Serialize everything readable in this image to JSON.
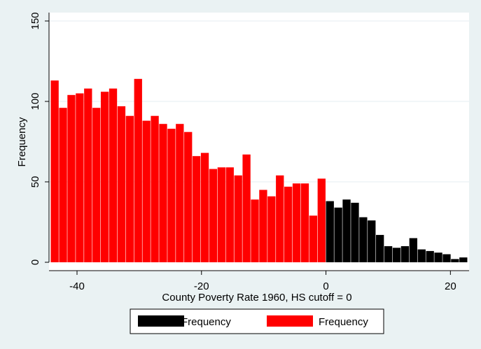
{
  "chart_data": {
    "type": "bar",
    "title": "",
    "xlabel": "County Poverty Rate 1960, HS cutoff = 0",
    "ylabel": "Frequency",
    "xlim": [
      -44.5,
      23
    ],
    "ylim": [
      0,
      150
    ],
    "x_ticks": [
      -40,
      -20,
      0,
      20
    ],
    "y_ticks": [
      0,
      50,
      100,
      150
    ],
    "grid": true,
    "legend_position": "bottom",
    "bin_width": 1.34,
    "series": [
      {
        "name": "Frequency",
        "color": "#000000",
        "bins": [
          {
            "x": 0.0,
            "value": 38
          },
          {
            "x": 1.34,
            "value": 34
          },
          {
            "x": 2.68,
            "value": 39
          },
          {
            "x": 4.02,
            "value": 37
          },
          {
            "x": 5.36,
            "value": 28
          },
          {
            "x": 6.7,
            "value": 26
          },
          {
            "x": 8.04,
            "value": 17
          },
          {
            "x": 9.38,
            "value": 10
          },
          {
            "x": 10.72,
            "value": 9
          },
          {
            "x": 12.06,
            "value": 10
          },
          {
            "x": 13.4,
            "value": 15
          },
          {
            "x": 14.74,
            "value": 8
          },
          {
            "x": 16.08,
            "value": 7
          },
          {
            "x": 17.42,
            "value": 6
          },
          {
            "x": 18.76,
            "value": 5
          },
          {
            "x": 20.1,
            "value": 2
          },
          {
            "x": 21.44,
            "value": 3
          }
        ]
      },
      {
        "name": "Frequency",
        "color": "#ff0000",
        "bins": [
          {
            "x": -44.22,
            "value": 113
          },
          {
            "x": -42.88,
            "value": 96
          },
          {
            "x": -41.54,
            "value": 104
          },
          {
            "x": -40.2,
            "value": 105
          },
          {
            "x": -38.86,
            "value": 108
          },
          {
            "x": -37.52,
            "value": 96
          },
          {
            "x": -36.18,
            "value": 106
          },
          {
            "x": -34.84,
            "value": 108
          },
          {
            "x": -33.5,
            "value": 97
          },
          {
            "x": -32.16,
            "value": 91
          },
          {
            "x": -30.82,
            "value": 114
          },
          {
            "x": -29.48,
            "value": 88
          },
          {
            "x": -28.14,
            "value": 91
          },
          {
            "x": -26.8,
            "value": 86
          },
          {
            "x": -25.46,
            "value": 83
          },
          {
            "x": -24.12,
            "value": 86
          },
          {
            "x": -22.78,
            "value": 81
          },
          {
            "x": -21.44,
            "value": 66
          },
          {
            "x": -20.1,
            "value": 68
          },
          {
            "x": -18.76,
            "value": 58
          },
          {
            "x": -17.42,
            "value": 59
          },
          {
            "x": -16.08,
            "value": 59
          },
          {
            "x": -14.74,
            "value": 54
          },
          {
            "x": -13.4,
            "value": 67
          },
          {
            "x": -12.06,
            "value": 39
          },
          {
            "x": -10.72,
            "value": 45
          },
          {
            "x": -9.38,
            "value": 41
          },
          {
            "x": -8.04,
            "value": 54
          },
          {
            "x": -6.7,
            "value": 47
          },
          {
            "x": -5.36,
            "value": 49
          },
          {
            "x": -4.02,
            "value": 49
          },
          {
            "x": -2.68,
            "value": 29
          },
          {
            "x": -1.34,
            "value": 52
          }
        ]
      }
    ]
  }
}
